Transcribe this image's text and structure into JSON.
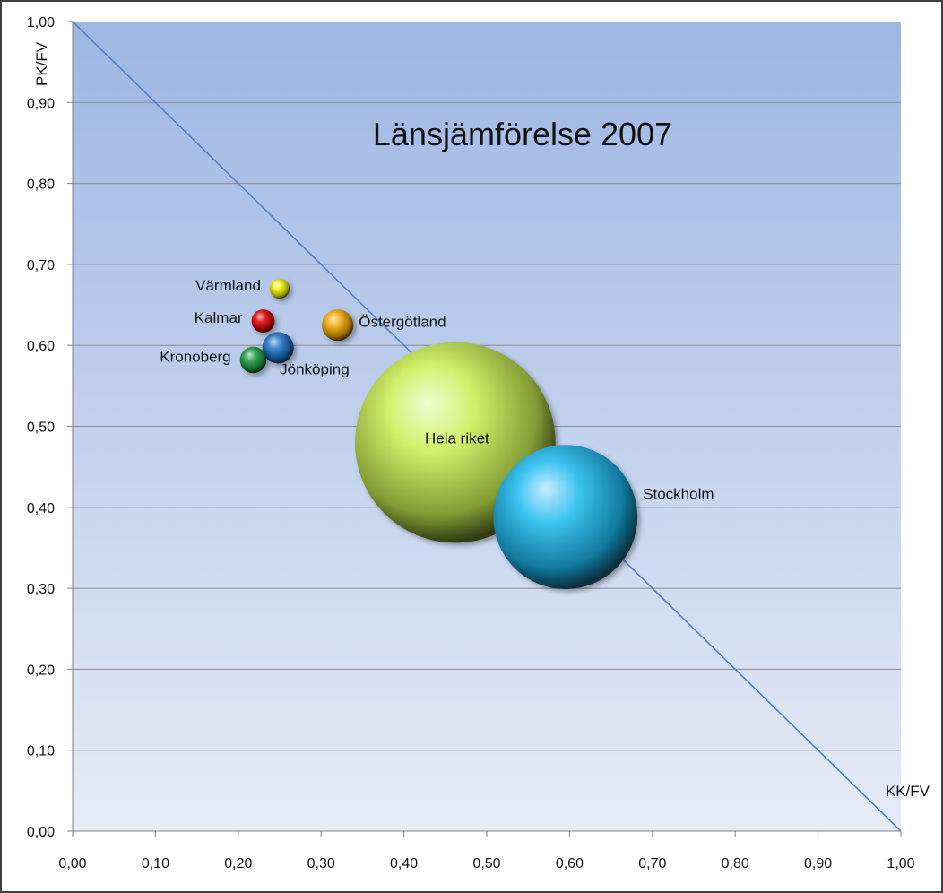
{
  "chart_data": {
    "type": "bubble",
    "title": "Länsjämförelse 2007",
    "xlabel": "KK/FV",
    "ylabel": "PK/FV",
    "xlim": [
      0,
      1
    ],
    "ylim": [
      0,
      1
    ],
    "x_ticks": [
      0,
      0.1,
      0.2,
      0.3,
      0.4,
      0.5,
      0.6,
      0.7,
      0.8,
      0.9,
      1.0
    ],
    "y_ticks": [
      0,
      0.1,
      0.2,
      0.3,
      0.4,
      0.5,
      0.6,
      0.7,
      0.8,
      0.9,
      1.0
    ],
    "x_tick_labels": [
      "0,00",
      "0,10",
      "0,20",
      "0,30",
      "0,40",
      "0,50",
      "0,60",
      "0,70",
      "0,80",
      "0,90",
      "1,00"
    ],
    "y_tick_labels": [
      "0,00",
      "0,10",
      "0,20",
      "0,30",
      "0,40",
      "0,50",
      "0,60",
      "0,70",
      "0,80",
      "0,90",
      "1,00"
    ],
    "grid": "horizontal",
    "reference_line": {
      "from": [
        0,
        1
      ],
      "to": [
        1,
        0
      ]
    },
    "series": [
      {
        "name": "Värmland",
        "x": 0.25,
        "y": 0.67,
        "size": 0.012,
        "color": "#f2f200",
        "label_side": "left"
      },
      {
        "name": "Kalmar",
        "x": 0.23,
        "y": 0.63,
        "size": 0.014,
        "color": "#e00000",
        "label_side": "left"
      },
      {
        "name": "Östergötland",
        "x": 0.32,
        "y": 0.625,
        "size": 0.019,
        "color": "#f0a800",
        "label_side": "right"
      },
      {
        "name": "Jönköping",
        "x": 0.248,
        "y": 0.597,
        "size": 0.019,
        "color": "#1a6fc4",
        "label_side": "below-right"
      },
      {
        "name": "Kronoberg",
        "x": 0.218,
        "y": 0.582,
        "size": 0.016,
        "color": "#1a9a3a",
        "label_side": "left"
      },
      {
        "name": "Hela riket",
        "x": 0.462,
        "y": 0.48,
        "size": 0.121,
        "color": "#c8ee50",
        "label_side": "center"
      },
      {
        "name": "Stockholm",
        "x": 0.595,
        "y": 0.388,
        "size": 0.087,
        "color": "#1ab8ee",
        "label_side": "upper-right"
      }
    ]
  }
}
